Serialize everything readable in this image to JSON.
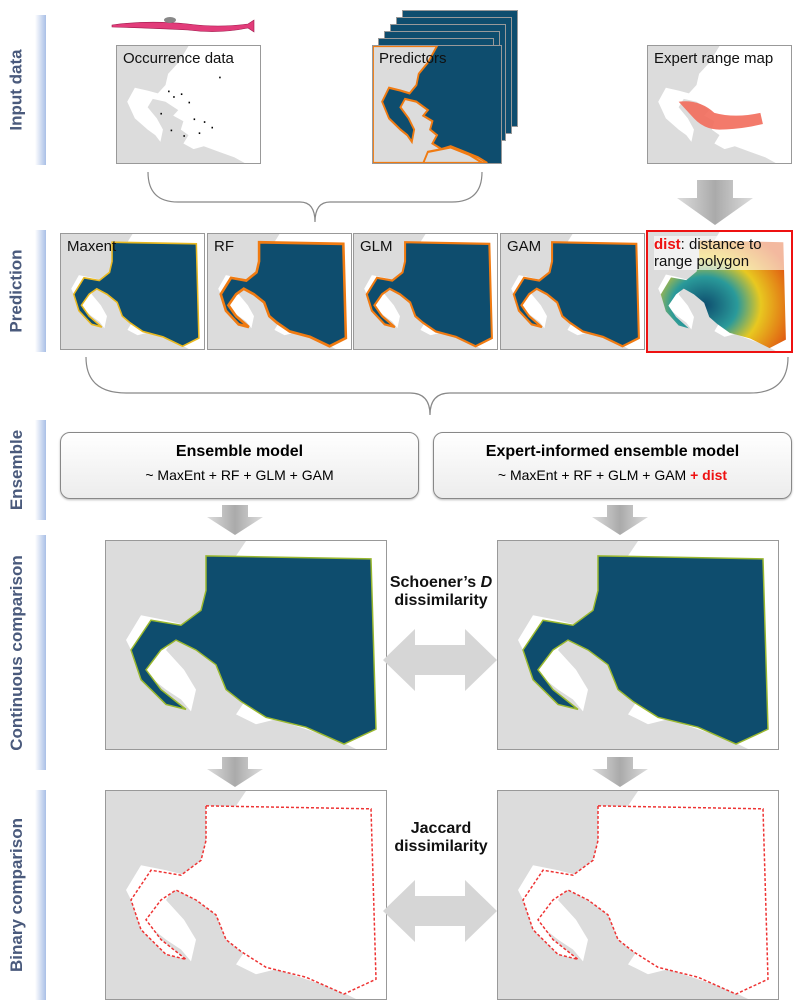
{
  "rows": [
    "Input data",
    "Prediction",
    "Ensemble",
    "Continuous comparison",
    "Binary comparison"
  ],
  "input": {
    "occurrence": "Occurrence data",
    "predictors": "Predictors",
    "expert": "Expert range map"
  },
  "prediction": {
    "models": [
      "Maxent",
      "RF",
      "GLM",
      "GAM"
    ],
    "dist_key": "dist",
    "dist_rest": ": distance to range polygon"
  },
  "ensemble": {
    "left": {
      "title": "Ensemble model",
      "formula": "~ MaxEnt + RF + GLM + GAM"
    },
    "right": {
      "title": "Expert-informed ensemble model",
      "formula": "~ MaxEnt + RF + GLM + GAM",
      "extra": "+ dist"
    }
  },
  "continuous": {
    "line1": "Schoener’s ",
    "italic": "D",
    "line2": "dissimilarity"
  },
  "binary": {
    "line1": "Jaccard",
    "line2": "dissimilarity"
  },
  "colors": {
    "ocean": "#0e4d6e",
    "land": "#dcdcdc",
    "highlight": "#ee1111",
    "label": "#4a5a7c",
    "suitability_high": "#f07b12",
    "range": "#f26b5b"
  }
}
